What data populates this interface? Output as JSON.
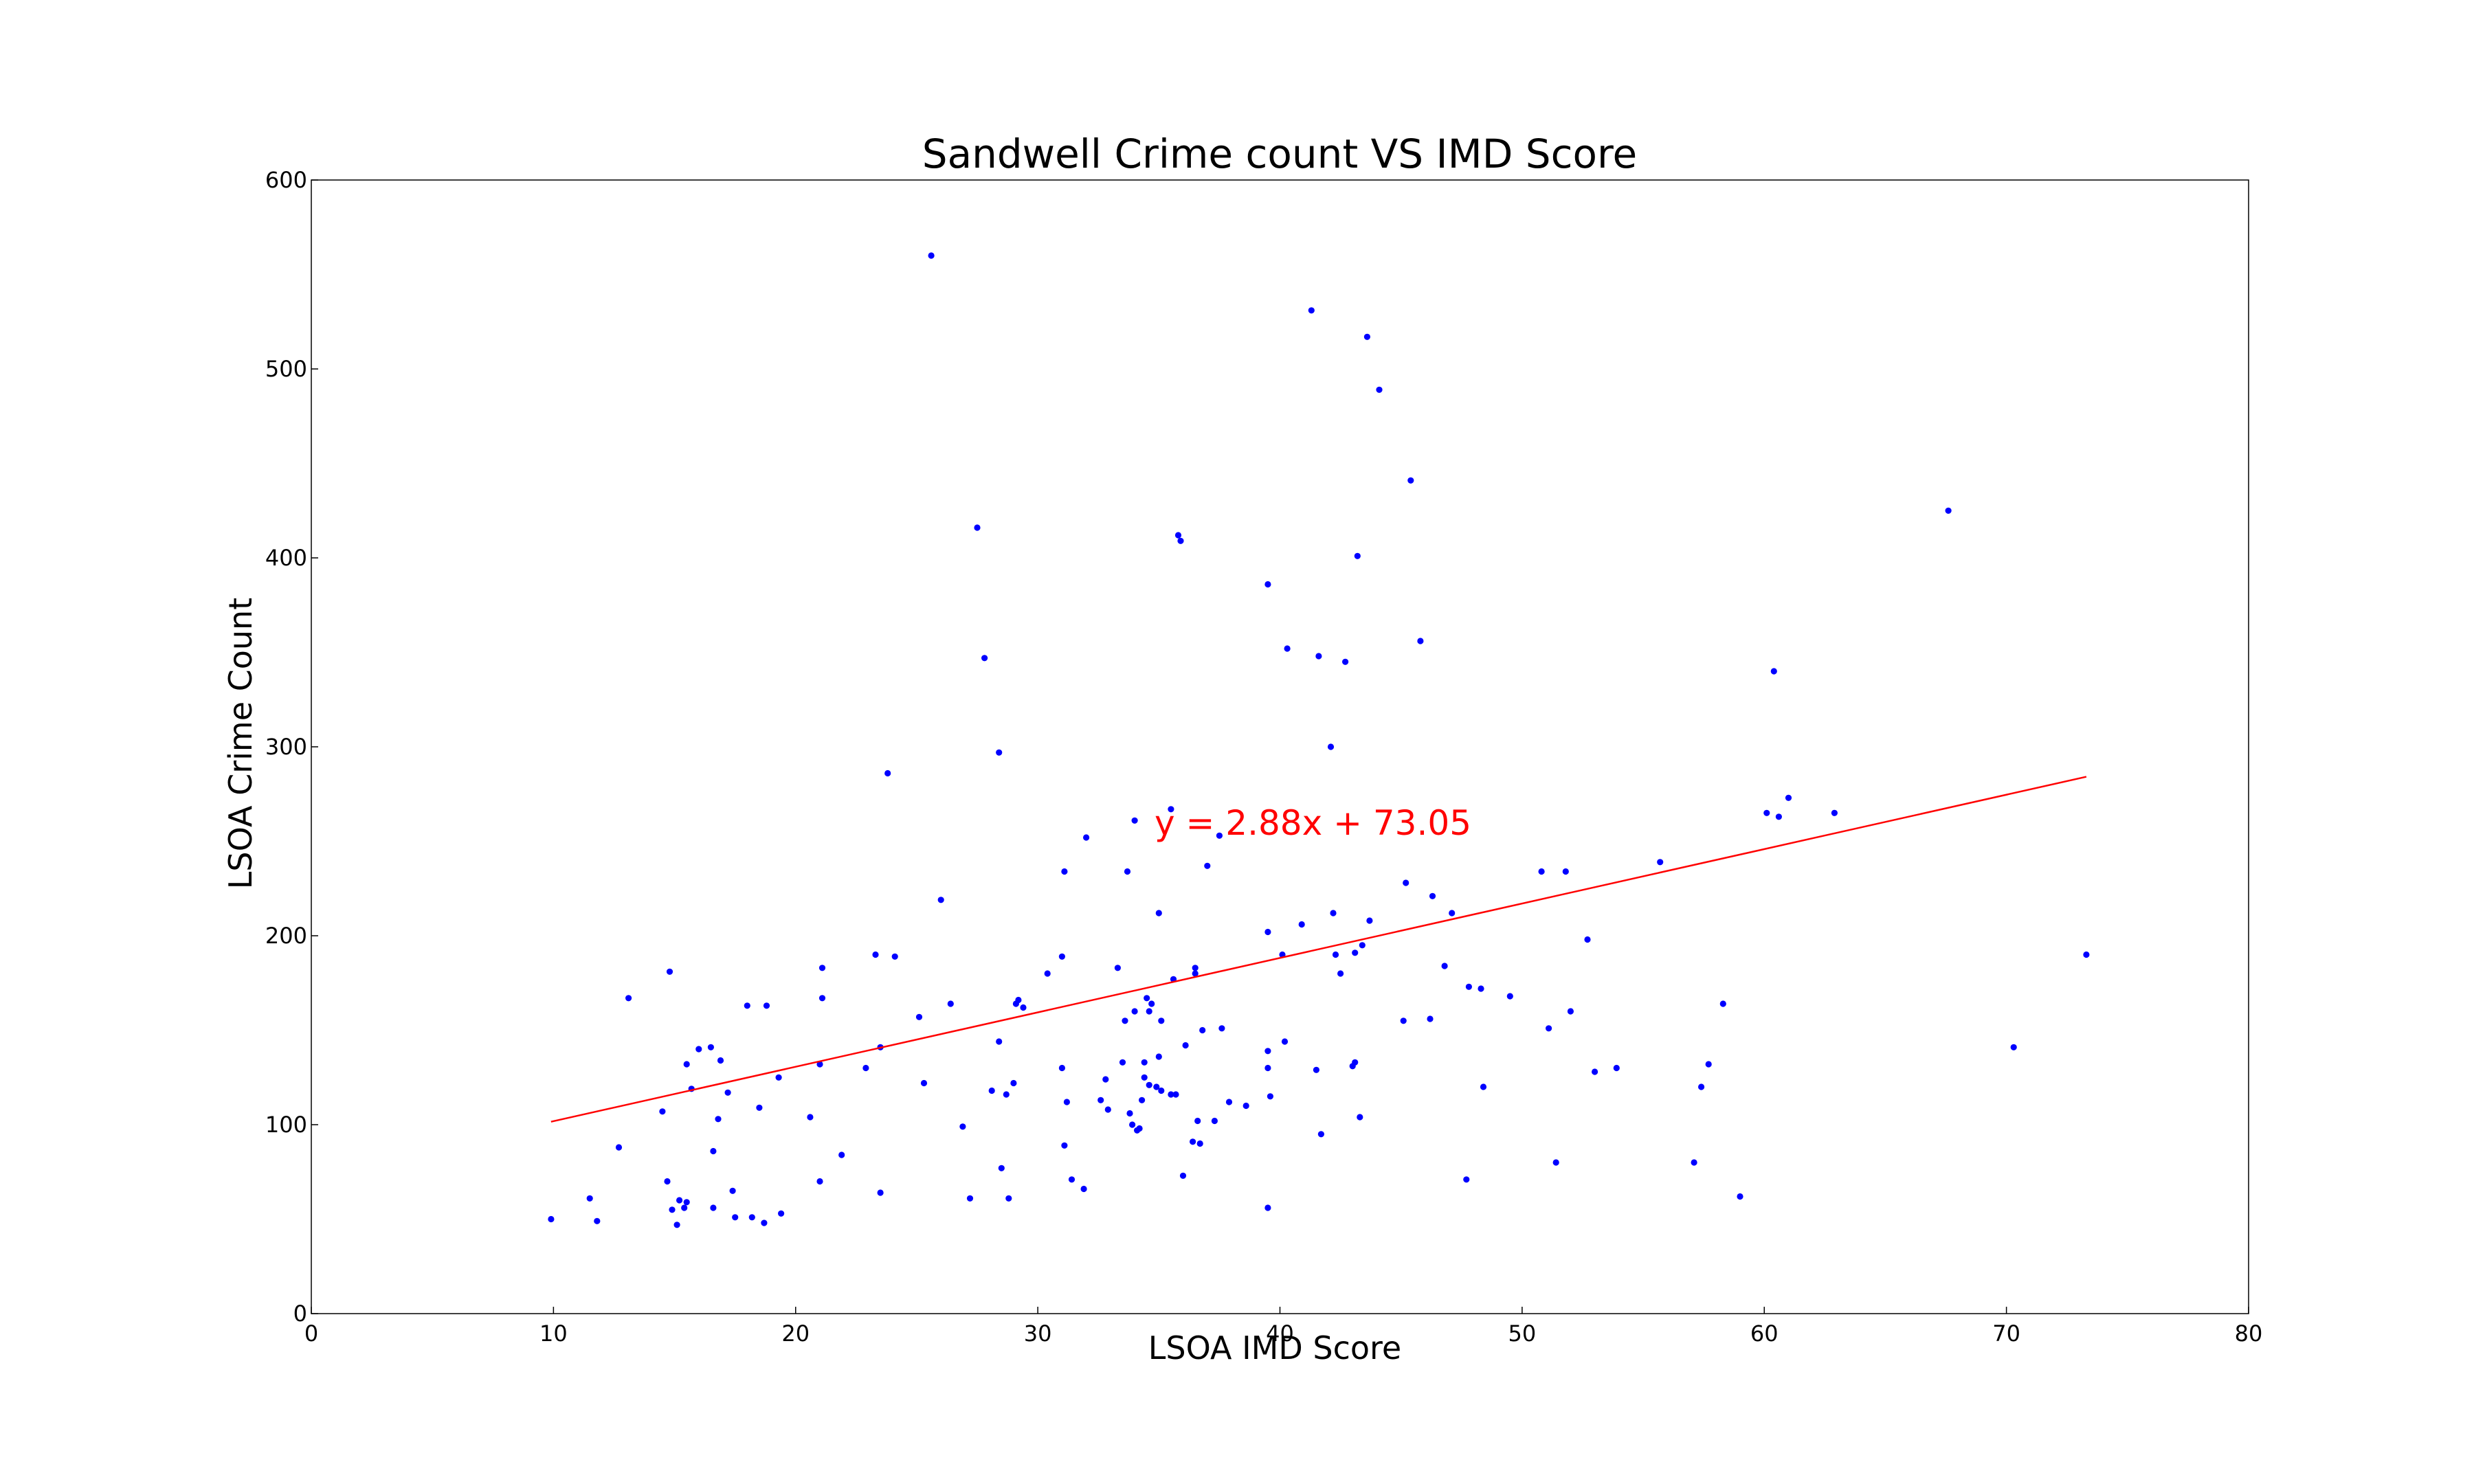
{
  "chart_data": {
    "type": "scatter",
    "title": "Sandwell Crime count VS IMD Score",
    "xlabel": "LSOA IMD Score",
    "ylabel": "LSOA Crime Count",
    "xlim": [
      0,
      80
    ],
    "ylim": [
      0,
      600
    ],
    "xticks": [
      0,
      10,
      20,
      30,
      40,
      50,
      60,
      70,
      80
    ],
    "yticks": [
      0,
      100,
      200,
      300,
      400,
      500,
      600
    ],
    "grid": false,
    "colors": {
      "points": "#0000ff",
      "trendline": "#ff0000",
      "axes": "#000000"
    },
    "series": [
      {
        "marker": "dot",
        "points": [
          [
            9.9,
            50
          ],
          [
            11.5,
            61
          ],
          [
            11.8,
            49
          ],
          [
            12.7,
            88
          ],
          [
            13.1,
            167
          ],
          [
            14.5,
            107
          ],
          [
            14.7,
            70
          ],
          [
            14.8,
            181
          ],
          [
            14.9,
            55
          ],
          [
            15.1,
            47
          ],
          [
            15.2,
            60
          ],
          [
            15.4,
            56
          ],
          [
            15.5,
            59
          ],
          [
            15.5,
            132
          ],
          [
            15.7,
            119
          ],
          [
            16.0,
            140
          ],
          [
            16.5,
            141
          ],
          [
            16.6,
            86
          ],
          [
            16.6,
            56
          ],
          [
            16.8,
            103
          ],
          [
            16.9,
            134
          ],
          [
            17.2,
            117
          ],
          [
            17.4,
            65
          ],
          [
            17.5,
            51
          ],
          [
            18.0,
            163
          ],
          [
            18.2,
            51
          ],
          [
            18.5,
            109
          ],
          [
            18.7,
            48
          ],
          [
            18.8,
            163
          ],
          [
            19.3,
            125
          ],
          [
            19.4,
            53
          ],
          [
            20.6,
            104
          ],
          [
            21.0,
            132
          ],
          [
            21.0,
            70
          ],
          [
            21.1,
            183
          ],
          [
            21.1,
            167
          ],
          [
            21.9,
            84
          ],
          [
            22.9,
            130
          ],
          [
            23.3,
            190
          ],
          [
            23.5,
            141
          ],
          [
            23.5,
            64
          ],
          [
            23.8,
            286
          ],
          [
            24.1,
            189
          ],
          [
            25.1,
            157
          ],
          [
            25.3,
            122
          ],
          [
            25.6,
            560
          ],
          [
            26.0,
            219
          ],
          [
            26.4,
            164
          ],
          [
            26.9,
            99
          ],
          [
            27.2,
            61
          ],
          [
            27.5,
            416
          ],
          [
            27.8,
            347
          ],
          [
            28.1,
            118
          ],
          [
            28.4,
            297
          ],
          [
            28.4,
            144
          ],
          [
            28.5,
            77
          ],
          [
            28.7,
            116
          ],
          [
            28.8,
            61
          ],
          [
            29.0,
            122
          ],
          [
            29.1,
            164
          ],
          [
            29.2,
            166
          ],
          [
            29.4,
            162
          ],
          [
            30.4,
            180
          ],
          [
            31.0,
            130
          ],
          [
            31.0,
            189
          ],
          [
            31.1,
            234
          ],
          [
            31.1,
            89
          ],
          [
            31.2,
            112
          ],
          [
            31.4,
            71
          ],
          [
            31.9,
            66
          ],
          [
            32.0,
            252
          ],
          [
            32.6,
            113
          ],
          [
            32.8,
            124
          ],
          [
            32.9,
            108
          ],
          [
            33.3,
            183
          ],
          [
            33.5,
            133
          ],
          [
            33.6,
            155
          ],
          [
            33.7,
            234
          ],
          [
            33.8,
            106
          ],
          [
            33.9,
            100
          ],
          [
            34.0,
            160
          ],
          [
            34.0,
            261
          ],
          [
            34.1,
            97
          ],
          [
            34.2,
            98
          ],
          [
            34.3,
            113
          ],
          [
            34.4,
            133
          ],
          [
            34.4,
            125
          ],
          [
            34.5,
            167
          ],
          [
            34.6,
            160
          ],
          [
            34.6,
            121
          ],
          [
            34.7,
            164
          ],
          [
            34.9,
            120
          ],
          [
            35.0,
            136
          ],
          [
            35.0,
            212
          ],
          [
            35.1,
            155
          ],
          [
            35.1,
            118
          ],
          [
            35.5,
            267
          ],
          [
            35.5,
            116
          ],
          [
            35.6,
            177
          ],
          [
            35.7,
            116
          ],
          [
            35.8,
            412
          ],
          [
            35.9,
            409
          ],
          [
            36.0,
            73
          ],
          [
            36.1,
            142
          ],
          [
            36.4,
            91
          ],
          [
            36.5,
            180
          ],
          [
            36.5,
            183
          ],
          [
            36.6,
            102
          ],
          [
            36.7,
            90
          ],
          [
            36.8,
            150
          ],
          [
            37.0,
            237
          ],
          [
            37.3,
            102
          ],
          [
            37.5,
            253
          ],
          [
            37.6,
            151
          ],
          [
            37.9,
            112
          ],
          [
            38.6,
            110
          ],
          [
            39.5,
            386
          ],
          [
            39.5,
            56
          ],
          [
            39.5,
            202
          ],
          [
            39.5,
            130
          ],
          [
            39.5,
            139
          ],
          [
            39.6,
            115
          ],
          [
            40.1,
            190
          ],
          [
            40.2,
            144
          ],
          [
            40.3,
            352
          ],
          [
            40.9,
            206
          ],
          [
            41.3,
            531
          ],
          [
            41.5,
            129
          ],
          [
            41.6,
            348
          ],
          [
            41.7,
            95
          ],
          [
            42.1,
            300
          ],
          [
            42.2,
            212
          ],
          [
            42.3,
            190
          ],
          [
            42.5,
            180
          ],
          [
            42.7,
            345
          ],
          [
            43.0,
            131
          ],
          [
            43.1,
            133
          ],
          [
            43.1,
            191
          ],
          [
            43.2,
            401
          ],
          [
            43.3,
            104
          ],
          [
            43.4,
            195
          ],
          [
            43.6,
            517
          ],
          [
            43.7,
            208
          ],
          [
            44.1,
            489
          ],
          [
            45.1,
            155
          ],
          [
            45.2,
            228
          ],
          [
            45.4,
            441
          ],
          [
            45.8,
            356
          ],
          [
            46.2,
            156
          ],
          [
            46.3,
            221
          ],
          [
            46.8,
            184
          ],
          [
            47.1,
            212
          ],
          [
            47.7,
            71
          ],
          [
            47.8,
            173
          ],
          [
            48.3,
            172
          ],
          [
            48.4,
            120
          ],
          [
            49.5,
            168
          ],
          [
            50.8,
            234
          ],
          [
            51.1,
            151
          ],
          [
            51.4,
            80
          ],
          [
            51.8,
            234
          ],
          [
            52.0,
            160
          ],
          [
            52.7,
            198
          ],
          [
            53.0,
            128
          ],
          [
            53.9,
            130
          ],
          [
            55.7,
            239
          ],
          [
            57.1,
            80
          ],
          [
            57.4,
            120
          ],
          [
            57.7,
            132
          ],
          [
            58.3,
            164
          ],
          [
            59.0,
            62
          ],
          [
            60.1,
            265
          ],
          [
            60.4,
            340
          ],
          [
            60.6,
            263
          ],
          [
            61.0,
            273
          ],
          [
            62.9,
            265
          ],
          [
            67.6,
            425
          ],
          [
            70.3,
            141
          ],
          [
            73.3,
            190
          ]
        ]
      }
    ],
    "trendline": {
      "equation": "y = 2.88x + 73.05",
      "slope": 2.88,
      "intercept": 73.05,
      "x_range": [
        9.9,
        73.3
      ]
    }
  }
}
